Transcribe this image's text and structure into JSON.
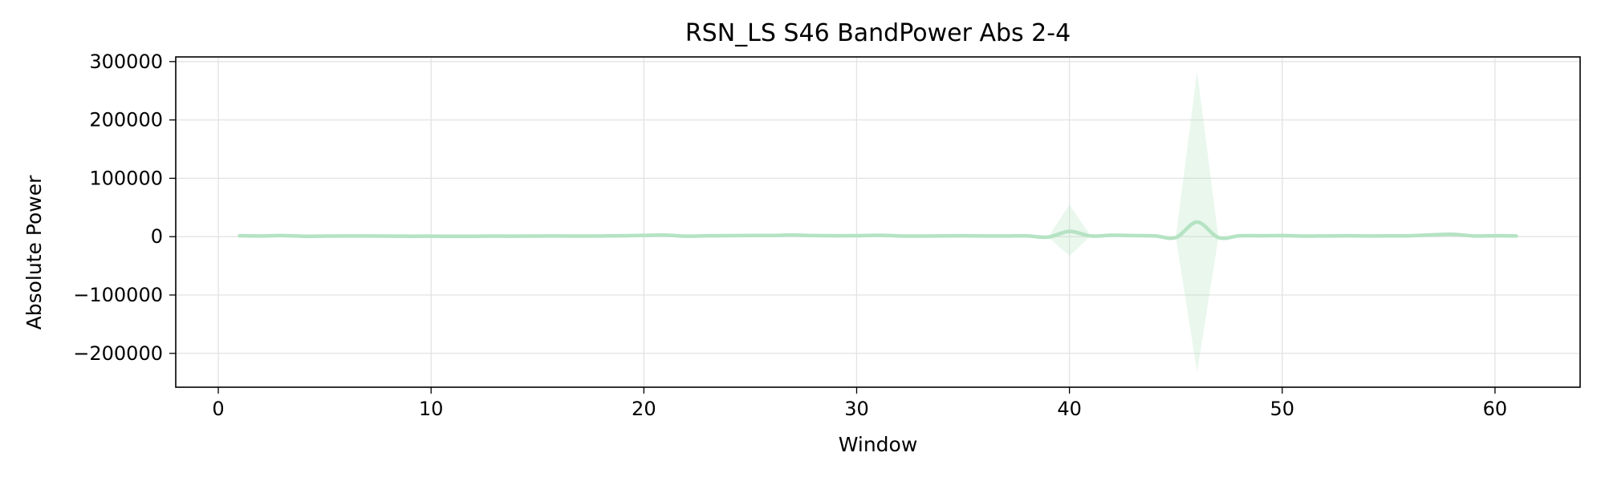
{
  "chart_data": {
    "type": "line",
    "title": "RSN_LS S46 BandPower Abs 2-4",
    "xlabel": "Window",
    "ylabel": "Absolute Power",
    "xlim": [
      -2,
      64
    ],
    "ylim": [
      -258000,
      308000
    ],
    "xticks": [
      0,
      10,
      20,
      30,
      40,
      50,
      60
    ],
    "yticks": [
      -200000,
      -100000,
      0,
      100000,
      200000,
      300000
    ],
    "xtick_labels": [
      "0",
      "10",
      "20",
      "30",
      "40",
      "50",
      "60"
    ],
    "ytick_labels": [
      "−200000",
      "−100000",
      "0",
      "100000",
      "200000",
      "300000"
    ],
    "grid": true,
    "series": [
      {
        "line_color": "#b5e3c3",
        "band_color": "#b5e3c3",
        "x": [
          1,
          2,
          3,
          4,
          5,
          6,
          7,
          8,
          9,
          10,
          11,
          12,
          13,
          14,
          15,
          16,
          17,
          18,
          19,
          20,
          21,
          22,
          23,
          24,
          25,
          26,
          27,
          28,
          29,
          30,
          31,
          32,
          33,
          34,
          35,
          36,
          37,
          38,
          39,
          40,
          41,
          42,
          43,
          44,
          45,
          46,
          47,
          48,
          49,
          50,
          51,
          52,
          53,
          54,
          55,
          56,
          57,
          58,
          59,
          60,
          61
        ],
        "y": [
          1500,
          1200,
          1800,
          700,
          1000,
          1100,
          1200,
          900,
          700,
          800,
          600,
          700,
          900,
          800,
          1000,
          1100,
          900,
          1200,
          1500,
          2200,
          2600,
          800,
          1500,
          1700,
          1900,
          2000,
          2600,
          1800,
          1500,
          1600,
          2400,
          1200,
          1000,
          1300,
          1500,
          1200,
          1100,
          1300,
          -800,
          9000,
          1200,
          2500,
          1800,
          1300,
          -1500,
          25000,
          -1500,
          1500,
          1500,
          1800,
          1000,
          1200,
          1400,
          1100,
          1300,
          1400,
          3000,
          4000,
          1200,
          1500,
          1200
        ],
        "upper": [
          1500,
          1200,
          1800,
          700,
          1000,
          1100,
          1200,
          900,
          700,
          800,
          600,
          700,
          900,
          800,
          1000,
          1100,
          900,
          1200,
          1500,
          2200,
          2600,
          800,
          1500,
          1700,
          1900,
          2000,
          2600,
          1800,
          1500,
          1600,
          2400,
          1200,
          1000,
          1300,
          1500,
          1200,
          1100,
          1300,
          -800,
          55000,
          1200,
          2500,
          1800,
          1300,
          -1500,
          283000,
          -1500,
          1500,
          1500,
          6000,
          1000,
          1200,
          1400,
          1100,
          1300,
          1400,
          3000,
          4000,
          1200,
          1500,
          1200
        ],
        "lower": [
          1500,
          1200,
          1800,
          700,
          1000,
          1100,
          1200,
          900,
          700,
          800,
          600,
          700,
          900,
          800,
          1000,
          1100,
          900,
          1200,
          1500,
          2200,
          2600,
          800,
          1500,
          1700,
          1900,
          2000,
          2600,
          1800,
          1500,
          1600,
          2400,
          1200,
          1000,
          1300,
          1500,
          1200,
          1100,
          1300,
          -800,
          -33000,
          1200,
          2500,
          1800,
          1300,
          -1500,
          -232000,
          -1500,
          1500,
          1500,
          -2000,
          1000,
          1200,
          1400,
          1100,
          1300,
          1400,
          3000,
          4000,
          1200,
          1500,
          1200
        ]
      }
    ]
  }
}
